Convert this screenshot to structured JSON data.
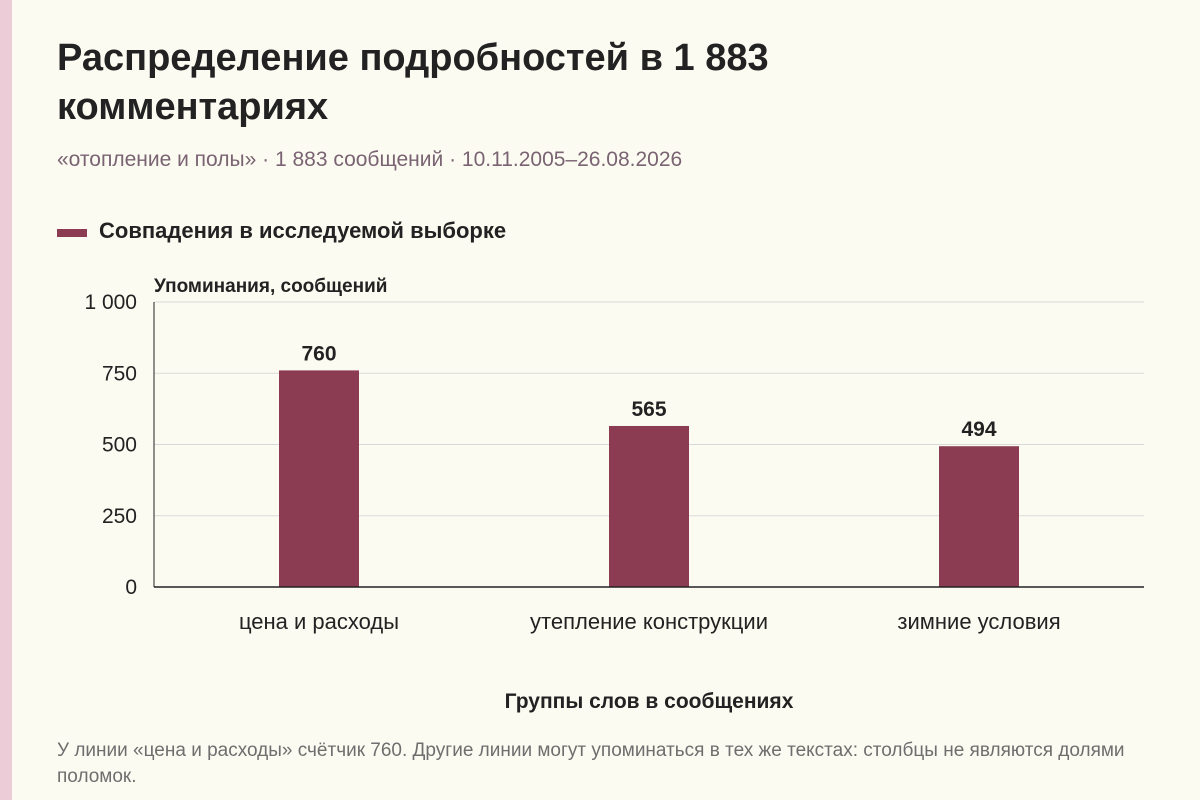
{
  "header": {
    "title": "Распределение подробностей в 1 883 комментариях",
    "subtitle": "«отопление и полы» · 1 883 сообщений · 10.11.2005–26.08.2026"
  },
  "colors": {
    "bar": "#8b3b52",
    "grid": "#d9d9d9",
    "axis": "#222222",
    "side_stripe": "#ecccd6"
  },
  "chart_data": {
    "type": "bar",
    "categories": [
      "цена и расходы",
      "утепление конструкции",
      "зимние условия"
    ],
    "series": [
      {
        "name": "Совпадения в исследуемой выборке",
        "values": [
          760,
          565,
          494
        ],
        "data_labels": [
          "760",
          "565",
          "494"
        ]
      }
    ],
    "ylabel": "Упоминания, сообщений",
    "xlabel": "Группы слов в сообщениях",
    "ylim": [
      0,
      1000
    ],
    "yticks": [
      0,
      250,
      500,
      750,
      1000
    ],
    "ytick_labels": [
      "0",
      "250",
      "500",
      "750",
      "1 000"
    ],
    "grid": true,
    "legend_position": "top-left"
  },
  "footer": {
    "note": "У линии «цена и расходы» счётчик 760. Другие линии могут упоминаться в тех же текстах: столбцы не являются долями поломок."
  }
}
